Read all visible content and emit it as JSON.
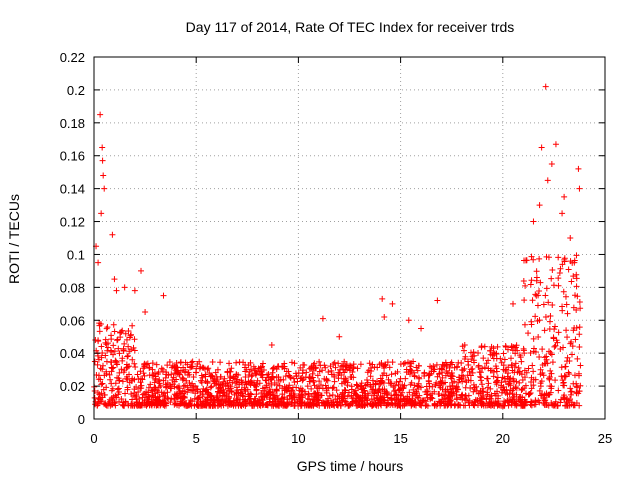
{
  "chart_data": {
    "type": "scatter",
    "title": "Day 117 of 2014, Rate Of TEC Index for receiver trds",
    "xlabel": "GPS time / hours",
    "ylabel": "ROTI / TECUs",
    "xlim": [
      0,
      25
    ],
    "ylim": [
      0,
      0.22
    ],
    "xticks": [
      0,
      5,
      10,
      15,
      20,
      25
    ],
    "yticks": [
      0,
      0.02,
      0.04,
      0.06,
      0.08,
      0.1,
      0.12,
      0.14,
      0.16,
      0.18,
      0.2,
      0.22
    ],
    "grid": true,
    "marker": "plus",
    "color": "#ff0000",
    "series": [
      {
        "x": [
          0.3,
          0.4,
          0.45,
          0.5,
          0.35,
          0.42,
          0.9,
          0.1,
          0.2,
          1.0,
          1.1,
          1.5,
          2.0,
          2.3,
          2.5,
          3.4,
          14.1,
          14.2,
          14.6,
          15.4,
          16.0,
          16.8,
          11.2,
          12.0,
          8.7,
          20.5,
          21.5,
          21.8,
          21.9,
          22.1,
          22.2,
          22.4,
          22.6,
          22.9,
          23.0,
          23.3,
          23.5,
          23.7,
          23.75
        ],
        "y": [
          0.185,
          0.165,
          0.148,
          0.14,
          0.125,
          0.157,
          0.112,
          0.105,
          0.095,
          0.085,
          0.078,
          0.08,
          0.078,
          0.09,
          0.065,
          0.075,
          0.073,
          0.062,
          0.07,
          0.06,
          0.055,
          0.072,
          0.061,
          0.05,
          0.045,
          0.07,
          0.12,
          0.13,
          0.165,
          0.202,
          0.145,
          0.155,
          0.167,
          0.125,
          0.135,
          0.11,
          0.095,
          0.152,
          0.14
        ]
      }
    ],
    "dense_band": {
      "description_ranges": [
        {
          "x_from": 0.0,
          "x_to": 2.0,
          "y_from": 0.008,
          "y_to": 0.06
        },
        {
          "x_from": 2.0,
          "x_to": 18.0,
          "y_from": 0.008,
          "y_to": 0.035
        },
        {
          "x_from": 18.0,
          "x_to": 21.0,
          "y_from": 0.008,
          "y_to": 0.045
        },
        {
          "x_from": 21.0,
          "x_to": 23.8,
          "y_from": 0.008,
          "y_to": 0.1
        }
      ]
    }
  }
}
